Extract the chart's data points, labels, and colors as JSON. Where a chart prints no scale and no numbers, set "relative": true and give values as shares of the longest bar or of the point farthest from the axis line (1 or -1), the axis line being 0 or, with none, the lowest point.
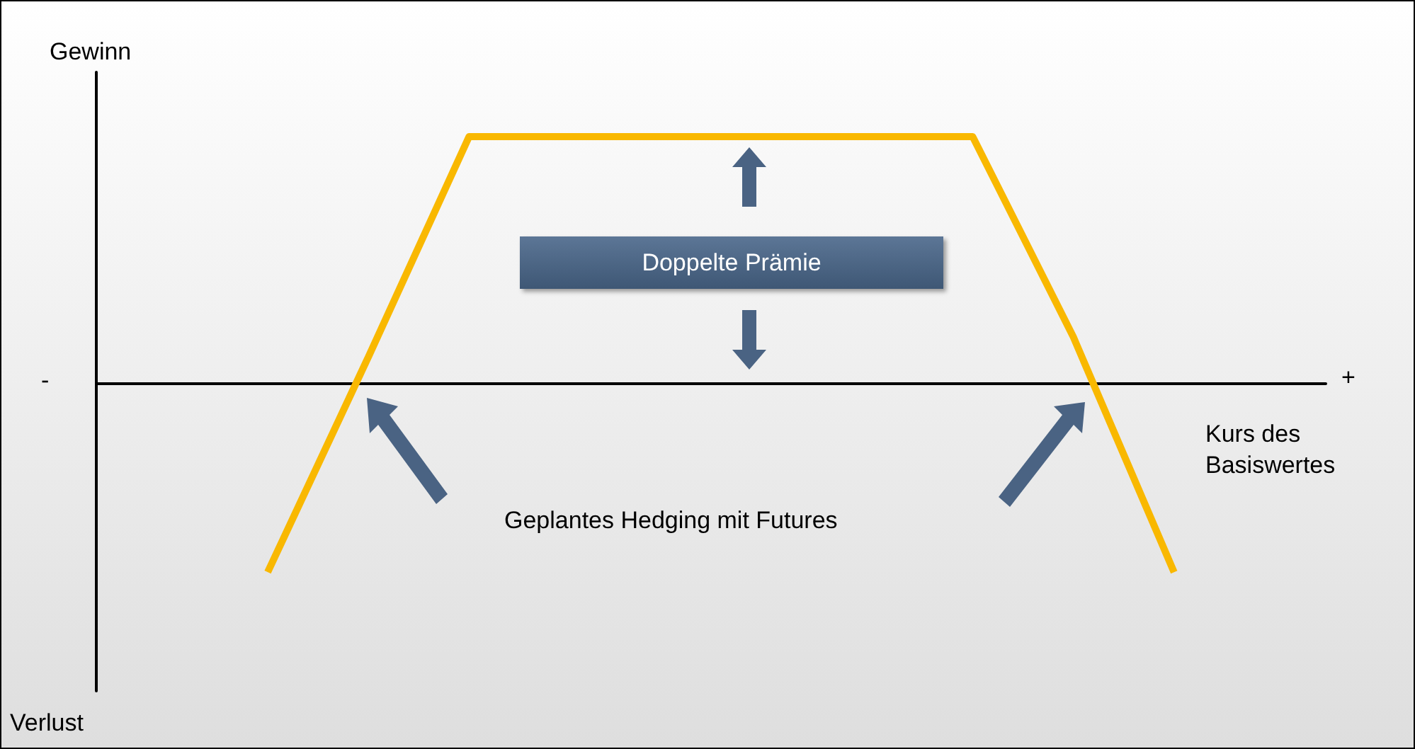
{
  "chart_data": {
    "type": "line",
    "relative": true,
    "categories": [
      null,
      null,
      null,
      null,
      null,
      null,
      null,
      null,
      null,
      null
    ],
    "series": [
      {
        "color": "#f9b800",
        "values": [
          -0.76,
          0.11,
          1,
          1,
          1,
          1,
          1,
          1,
          0.19,
          -0.76
        ]
      }
    ],
    "ylabel": "Gewinn",
    "xlabel": "Kurs des Basiswertes",
    "annotations": [
      "Verlust",
      "-",
      "+",
      "Doppelte Prämie",
      "Geplantes Hedging mit Futures"
    ],
    "marker": "none",
    "line_style": "solid",
    "grid": false
  }
}
